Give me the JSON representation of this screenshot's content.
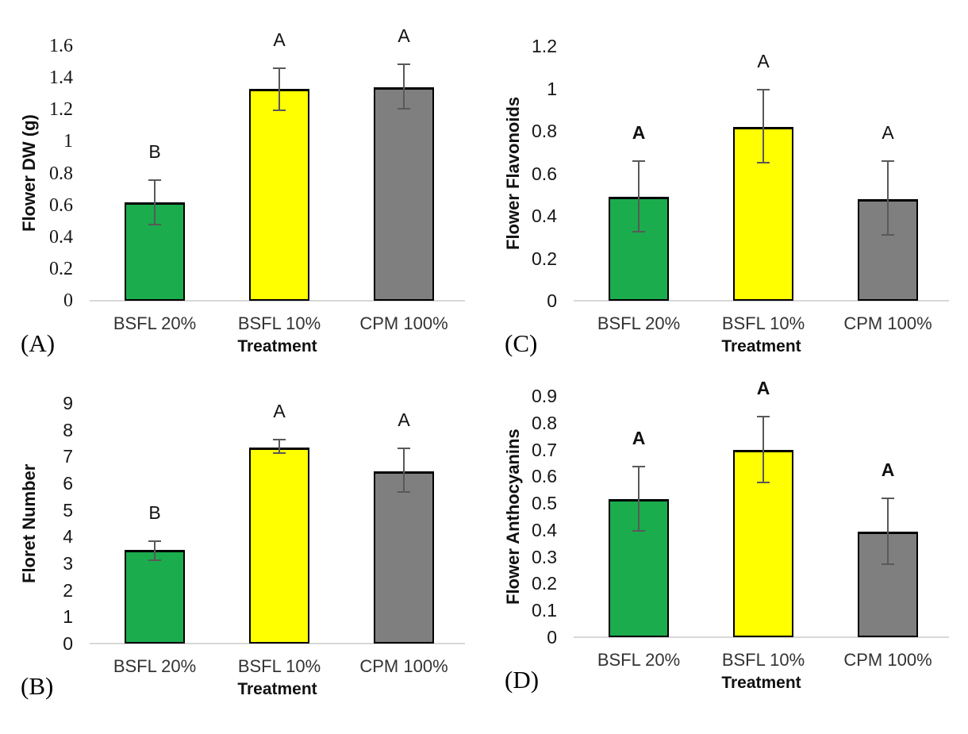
{
  "figure": {
    "xlabel_shared": "Treatment",
    "treatment_colors": {
      "BSFL 20%": "#1BAC4D",
      "BSFL 10%": "#FFFF00",
      "CPM 100%": "#7F7F7F"
    },
    "error_bar_color": "#595959",
    "axis_line_color": "#D8D8D8"
  },
  "chart_data": [
    {
      "id": "A",
      "panel_label": "(A)",
      "type": "bar",
      "title": "",
      "ylabel": "Flower DW (g)",
      "xlabel": "Treatment",
      "ylim": [
        0,
        1.6
      ],
      "ymax": 1.6,
      "grid": false,
      "legend": "none",
      "ytick_labels": [
        "0",
        "0.2",
        "0.4",
        "0.6",
        "0.8",
        "1",
        "1.2",
        "1.4",
        "1.6"
      ],
      "ytick_values": [
        0,
        0.2,
        0.4,
        0.6,
        0.8,
        1,
        1.2,
        1.4,
        1.6
      ],
      "categories": [
        "BSFL 20%",
        "BSFL 10%",
        "CPM 100%"
      ],
      "bars": [
        {
          "category": "BSFL 20%",
          "value": 0.62,
          "err_lo": 0.475,
          "err_hi": 0.765,
          "letter": "B",
          "letter_bold": false,
          "color": "#1BAC4D"
        },
        {
          "category": "BSFL 10%",
          "value": 1.33,
          "err_lo": 1.19,
          "err_hi": 1.465,
          "letter": "A",
          "letter_bold": false,
          "color": "#FFFF00"
        },
        {
          "category": "CPM 100%",
          "value": 1.34,
          "err_lo": 1.2,
          "err_hi": 1.49,
          "letter": "A",
          "letter_bold": false,
          "color": "#7F7F7F"
        }
      ]
    },
    {
      "id": "B",
      "panel_label": "(B)",
      "type": "bar",
      "title": "",
      "ylabel": "Floret Number",
      "xlabel": "Treatment",
      "ylim": [
        0,
        9
      ],
      "ymax": 9,
      "grid": false,
      "legend": "none",
      "ytick_labels": [
        "0",
        "1",
        "2",
        "3",
        "4",
        "5",
        "6",
        "7",
        "8",
        "9"
      ],
      "ytick_values": [
        0,
        1,
        2,
        3,
        4,
        5,
        6,
        7,
        8,
        9
      ],
      "categories": [
        "BSFL 20%",
        "BSFL 10%",
        "CPM 100%"
      ],
      "bars": [
        {
          "category": "BSFL 20%",
          "value": 3.5,
          "err_lo": 3.1,
          "err_hi": 3.85,
          "letter": "B",
          "letter_bold": false,
          "color": "#1BAC4D"
        },
        {
          "category": "BSFL 10%",
          "value": 7.35,
          "err_lo": 7.1,
          "err_hi": 7.65,
          "letter": "A",
          "letter_bold": false,
          "color": "#FFFF00"
        },
        {
          "category": "CPM 100%",
          "value": 6.45,
          "err_lo": 5.65,
          "err_hi": 7.35,
          "letter": "A",
          "letter_bold": false,
          "color": "#7F7F7F"
        }
      ]
    },
    {
      "id": "C",
      "panel_label": "(C)",
      "type": "bar",
      "title": "",
      "ylabel": "Flower Flavonoids",
      "xlabel": "Treatment",
      "ylim": [
        0,
        1.2
      ],
      "ymax": 1.2,
      "grid": false,
      "legend": "none",
      "ytick_labels": [
        "0",
        "0.2",
        "0.4",
        "0.6",
        "0.8",
        "1",
        "1.2"
      ],
      "ytick_values": [
        0,
        0.2,
        0.4,
        0.6,
        0.8,
        1,
        1.2
      ],
      "categories": [
        "BSFL 20%",
        "BSFL 10%",
        "CPM 100%"
      ],
      "bars": [
        {
          "category": "BSFL 20%",
          "value": 0.49,
          "err_lo": 0.32,
          "err_hi": 0.66,
          "letter": "A",
          "letter_bold": true,
          "color": "#1BAC4D"
        },
        {
          "category": "BSFL 10%",
          "value": 0.82,
          "err_lo": 0.645,
          "err_hi": 1.0,
          "letter": "A",
          "letter_bold": false,
          "color": "#FFFF00"
        },
        {
          "category": "CPM 100%",
          "value": 0.48,
          "err_lo": 0.305,
          "err_hi": 0.66,
          "letter": "A",
          "letter_bold": false,
          "color": "#7F7F7F"
        }
      ]
    },
    {
      "id": "D",
      "panel_label": "(D)",
      "type": "bar",
      "title": "",
      "ylabel": "Flower Anthocyanins",
      "xlabel": "Treatment",
      "ylim": [
        0,
        0.9
      ],
      "ymax": 0.9,
      "grid": false,
      "legend": "none",
      "ytick_labels": [
        "0",
        "0.1",
        "0.2",
        "0.3",
        "0.4",
        "0.5",
        "0.6",
        "0.7",
        "0.8",
        "0.9"
      ],
      "ytick_values": [
        0,
        0.1,
        0.2,
        0.3,
        0.4,
        0.5,
        0.6,
        0.7,
        0.8,
        0.9
      ],
      "categories": [
        "BSFL 20%",
        "BSFL 10%",
        "CPM 100%"
      ],
      "bars": [
        {
          "category": "BSFL 20%",
          "value": 0.515,
          "err_lo": 0.395,
          "err_hi": 0.64,
          "letter": "A",
          "letter_bold": true,
          "color": "#1BAC4D"
        },
        {
          "category": "BSFL 10%",
          "value": 0.7,
          "err_lo": 0.575,
          "err_hi": 0.825,
          "letter": "A",
          "letter_bold": true,
          "color": "#FFFF00"
        },
        {
          "category": "CPM 100%",
          "value": 0.395,
          "err_lo": 0.27,
          "err_hi": 0.52,
          "letter": "A",
          "letter_bold": true,
          "color": "#7F7F7F"
        }
      ]
    }
  ]
}
